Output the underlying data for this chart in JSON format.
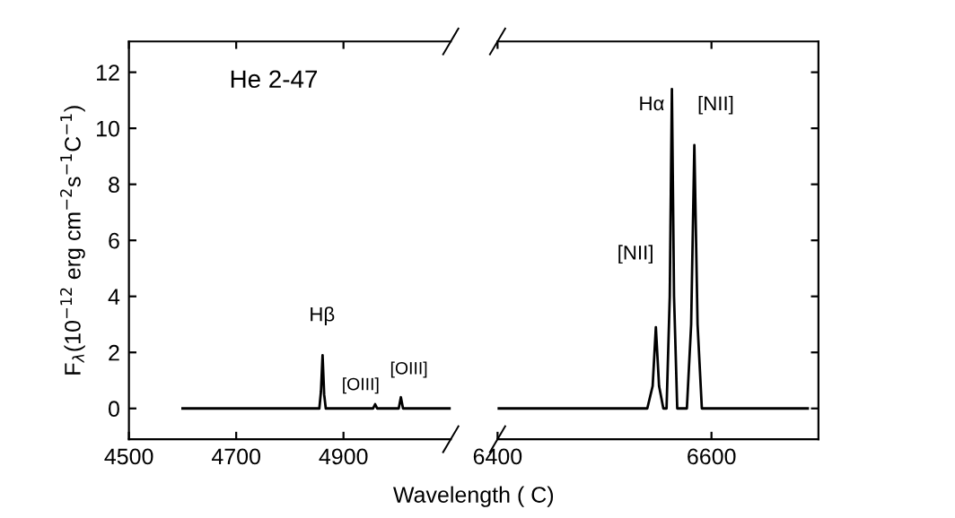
{
  "chart_data": [
    {
      "type": "line",
      "xlabel": "Wavelength ( C)",
      "ylabel": "F$_{λ}$(10$^{−12}$ erg cm$^{−2}$s$^{−1}$C$^{−1}$)",
      "xlim": [
        4500,
        5100
      ],
      "xticks": [
        4500,
        4700,
        4900
      ],
      "ylim": [
        -1.1,
        13.1
      ],
      "yticks": [
        0,
        2,
        4,
        6,
        8,
        10,
        12
      ],
      "grid": false,
      "legend": false,
      "marker": "none",
      "line_style": "solid",
      "series": [
        {
          "color": "#000000",
          "x": [
            4600,
            4855,
            4858,
            4861,
            4864,
            4867,
            4955,
            4959,
            4963,
            5003,
            5007,
            5011,
            5100
          ],
          "values": [
            0,
            0,
            0.6,
            1.9,
            0.5,
            0,
            0,
            0.15,
            0,
            0,
            0.4,
            0,
            0
          ]
        }
      ],
      "annotations": [
        "He 2-47",
        "Hβ",
        "[OIII]",
        "[OIII]"
      ]
    },
    {
      "type": "line",
      "xlim": [
        6400,
        6700
      ],
      "xticks": [
        6400,
        6600
      ],
      "ylim": [
        -1.1,
        13.1
      ],
      "yticks": [
        0,
        2,
        4,
        6,
        8,
        10,
        12
      ],
      "tick_labels": "x",
      "grid": false,
      "legend": false,
      "marker": "none",
      "line_style": "solid",
      "series": [
        {
          "color": "#000000",
          "x": [
            6400,
            6540,
            6545,
            6548,
            6551,
            6555,
            6558,
            6561,
            6563,
            6565,
            6568,
            6577,
            6581,
            6584,
            6587,
            6591,
            6690
          ],
          "values": [
            0,
            0,
            0.8,
            2.9,
            0.8,
            0,
            0,
            4,
            11.4,
            4,
            0,
            0,
            3,
            9.4,
            3,
            0,
            0
          ]
        }
      ],
      "annotations": [
        "[NII]",
        "Hα",
        "[NII]"
      ]
    }
  ]
}
